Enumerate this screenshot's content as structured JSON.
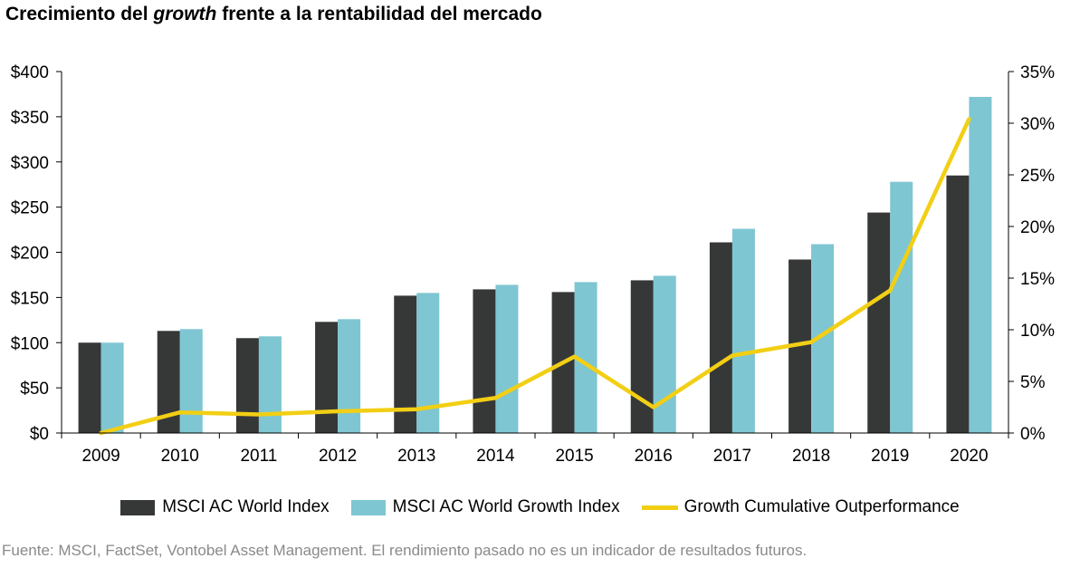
{
  "chart_data": {
    "type": "bar",
    "title_parts": [
      "Crecimiento del ",
      "growth",
      " frente a la rentabilidad del mercado"
    ],
    "categories": [
      "2009",
      "2010",
      "2011",
      "2012",
      "2013",
      "2014",
      "2015",
      "2016",
      "2017",
      "2018",
      "2019",
      "2020"
    ],
    "series": [
      {
        "name": "MSCI AC World Index",
        "type": "bar",
        "axis": "left",
        "color": "#363838",
        "values": [
          100,
          113,
          105,
          123,
          152,
          159,
          156,
          169,
          211,
          192,
          244,
          285
        ]
      },
      {
        "name": "MSCI AC World Growth Index",
        "type": "bar",
        "axis": "left",
        "color": "#7ec6d2",
        "values": [
          100,
          115,
          107,
          126,
          155,
          164,
          167,
          174,
          226,
          209,
          278,
          372
        ]
      },
      {
        "name": "Growth Cumulative Outperformance",
        "type": "line",
        "axis": "right",
        "color": "#f2cf14",
        "values": [
          0.0,
          2.0,
          1.8,
          2.1,
          2.3,
          3.4,
          7.4,
          2.5,
          7.5,
          8.8,
          13.8,
          30.4
        ]
      }
    ],
    "y_left": {
      "min": 0,
      "max": 400,
      "ticks": [
        "$0",
        "$50",
        "$100",
        "$150",
        "$200",
        "$250",
        "$300",
        "$350",
        "$400"
      ]
    },
    "y_right": {
      "min": 0,
      "max": 35,
      "ticks": [
        "0%",
        "5%",
        "10%",
        "15%",
        "20%",
        "25%",
        "30%",
        "35%"
      ]
    },
    "grid": false,
    "legend_position": "bottom"
  },
  "source": "Fuente: MSCI, FactSet, Vontobel Asset Management. El rendimiento pasado no es un indicador de resultados futuros."
}
